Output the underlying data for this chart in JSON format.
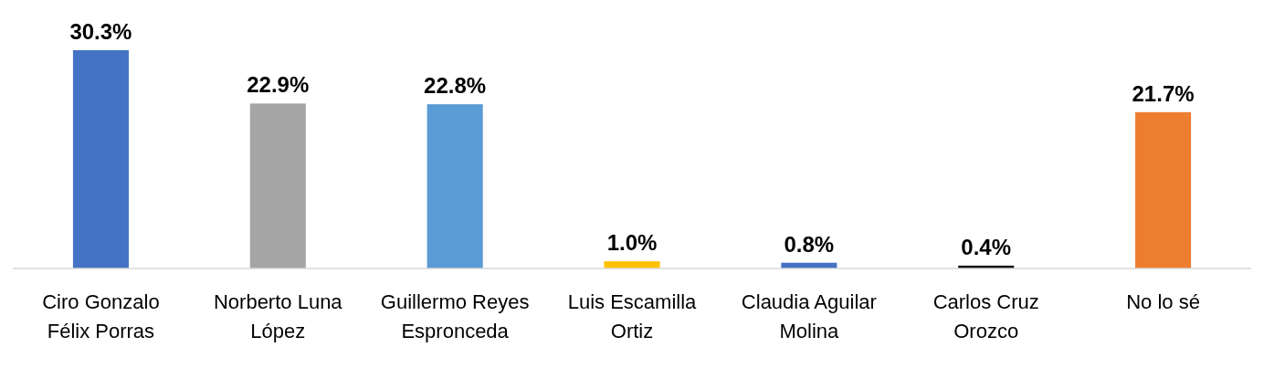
{
  "chart_data": {
    "type": "bar",
    "categories": [
      "Ciro Gonzalo Félix Porras",
      "Norberto Luna López",
      "Guillermo Reyes Espronceda",
      "Luis Escamilla Ortiz",
      "Claudia Aguilar Molina",
      "Carlos Cruz Orozco",
      "No lo sé"
    ],
    "values": [
      30.3,
      22.9,
      22.8,
      1.0,
      0.8,
      0.4,
      21.7
    ],
    "colors": [
      "#4472c4",
      "#a5a5a5",
      "#5b9bd5",
      "#ffc000",
      "#4472c4",
      "#0d0d0d",
      "#ed7d31"
    ],
    "value_labels": [
      "30.3%",
      "22.9%",
      "22.8%",
      "1.0%",
      "0.8%",
      "0.4%",
      "21.7%"
    ]
  }
}
